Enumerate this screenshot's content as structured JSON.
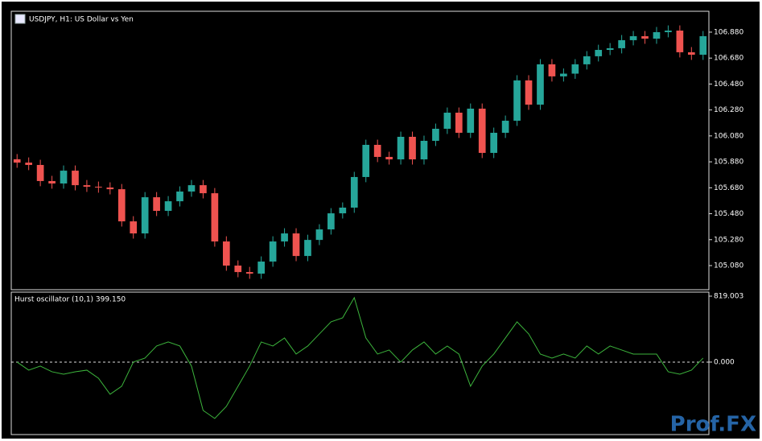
{
  "chart_data": [
    {
      "type": "candlestick",
      "title": "USDJPY, H1:  US Dollar vs Yen",
      "open": [
        105.9,
        105.874,
        105.856,
        105.732,
        105.713,
        105.812,
        105.7,
        105.688,
        105.682,
        105.669,
        105.421,
        105.328,
        105.607,
        105.502,
        105.576,
        105.651,
        105.7,
        105.638,
        105.266,
        105.08,
        105.03,
        105.018,
        105.111,
        105.266,
        105.328,
        105.154,
        105.278,
        105.359,
        105.483,
        105.527,
        105.763,
        106.011,
        105.918,
        105.899,
        106.073,
        105.899,
        106.042,
        106.135,
        106.259,
        106.104,
        106.29,
        105.949,
        106.104,
        106.197,
        106.508,
        106.321,
        106.632,
        106.539,
        106.56,
        106.632,
        106.694,
        106.743,
        106.756,
        106.818,
        106.849,
        106.83,
        106.88,
        106.892,
        106.725,
        106.706
      ],
      "high": [
        105.94,
        105.914,
        105.896,
        105.772,
        105.852,
        105.852,
        105.74,
        105.728,
        105.722,
        105.709,
        105.461,
        105.647,
        105.647,
        105.616,
        105.691,
        105.74,
        105.74,
        105.678,
        105.306,
        105.12,
        105.07,
        105.151,
        105.306,
        105.368,
        105.368,
        105.318,
        105.399,
        105.523,
        105.567,
        105.803,
        106.051,
        106.051,
        105.958,
        106.113,
        106.113,
        106.082,
        106.175,
        106.299,
        106.299,
        106.33,
        106.33,
        106.144,
        106.237,
        106.548,
        106.548,
        106.672,
        106.672,
        106.6,
        106.672,
        106.734,
        106.783,
        106.796,
        106.858,
        106.889,
        106.889,
        106.92,
        106.932,
        106.932,
        106.765,
        106.889
      ],
      "low": [
        105.834,
        105.816,
        105.692,
        105.673,
        105.673,
        105.66,
        105.648,
        105.642,
        105.629,
        105.381,
        105.288,
        105.288,
        105.462,
        105.462,
        105.536,
        105.611,
        105.598,
        105.226,
        105.04,
        104.99,
        104.978,
        104.978,
        105.071,
        105.226,
        105.114,
        105.114,
        105.238,
        105.319,
        105.443,
        105.487,
        105.723,
        105.878,
        105.859,
        105.859,
        105.859,
        105.859,
        106.002,
        106.095,
        106.064,
        106.064,
        105.909,
        105.909,
        106.064,
        106.157,
        106.281,
        106.281,
        106.499,
        106.499,
        106.52,
        106.592,
        106.654,
        106.703,
        106.716,
        106.778,
        106.79,
        106.79,
        106.84,
        106.685,
        106.666,
        106.666
      ],
      "close": [
        105.874,
        105.856,
        105.732,
        105.713,
        105.812,
        105.7,
        105.688,
        105.682,
        105.669,
        105.421,
        105.328,
        105.607,
        105.502,
        105.576,
        105.651,
        105.7,
        105.638,
        105.266,
        105.08,
        105.03,
        105.018,
        105.111,
        105.266,
        105.328,
        105.154,
        105.278,
        105.359,
        105.483,
        105.527,
        105.763,
        106.011,
        105.918,
        105.899,
        106.073,
        105.899,
        106.042,
        106.135,
        106.259,
        106.104,
        106.29,
        105.949,
        106.104,
        106.197,
        106.508,
        106.321,
        106.632,
        106.539,
        106.56,
        106.632,
        106.694,
        106.743,
        106.756,
        106.818,
        106.849,
        106.83,
        106.88,
        106.892,
        106.725,
        106.706,
        106.849
      ],
      "up_color": "#26a69a",
      "down_color": "#ef5350",
      "ylim": [
        104.894,
        107.041
      ],
      "yticks": [
        {
          "value": 106.88,
          "label": "106.880"
        },
        {
          "value": 106.68,
          "label": "106.680"
        },
        {
          "value": 106.48,
          "label": "106.480"
        },
        {
          "value": 106.28,
          "label": "106.280"
        },
        {
          "value": 106.08,
          "label": "106.080"
        },
        {
          "value": 105.88,
          "label": "105.880"
        },
        {
          "value": 105.68,
          "label": "105.680"
        },
        {
          "value": 105.48,
          "label": "105.480"
        },
        {
          "value": 105.28,
          "label": "105.280"
        },
        {
          "value": 105.08,
          "label": "105.080"
        }
      ]
    },
    {
      "type": "line",
      "title": "Hurst oscillator (10,1) 399.150",
      "series": [
        {
          "color": "#3cb43c",
          "values": [
            0,
            -100,
            -50,
            -120,
            -150,
            -120,
            -100,
            -200,
            -400,
            -300,
            0,
            50,
            200,
            250,
            200,
            -50,
            -600,
            -700,
            -550,
            -300,
            -50,
            250,
            200,
            300,
            100,
            200,
            350,
            500,
            550,
            800,
            300,
            100,
            150,
            0,
            150,
            250,
            100,
            200,
            100,
            -300,
            -50,
            100,
            300,
            500,
            350,
            100,
            50,
            100,
            50,
            200,
            100,
            200,
            150,
            100,
            100,
            100,
            -120,
            -150,
            -100,
            50
          ]
        }
      ],
      "ylim": [
        -900,
        869
      ],
      "yticks": [
        {
          "value": 819.003,
          "label": "819.003"
        },
        {
          "value": 0,
          "label": "0.000"
        }
      ],
      "levels": [
        0
      ],
      "watermark": "Prof.FX"
    }
  ]
}
